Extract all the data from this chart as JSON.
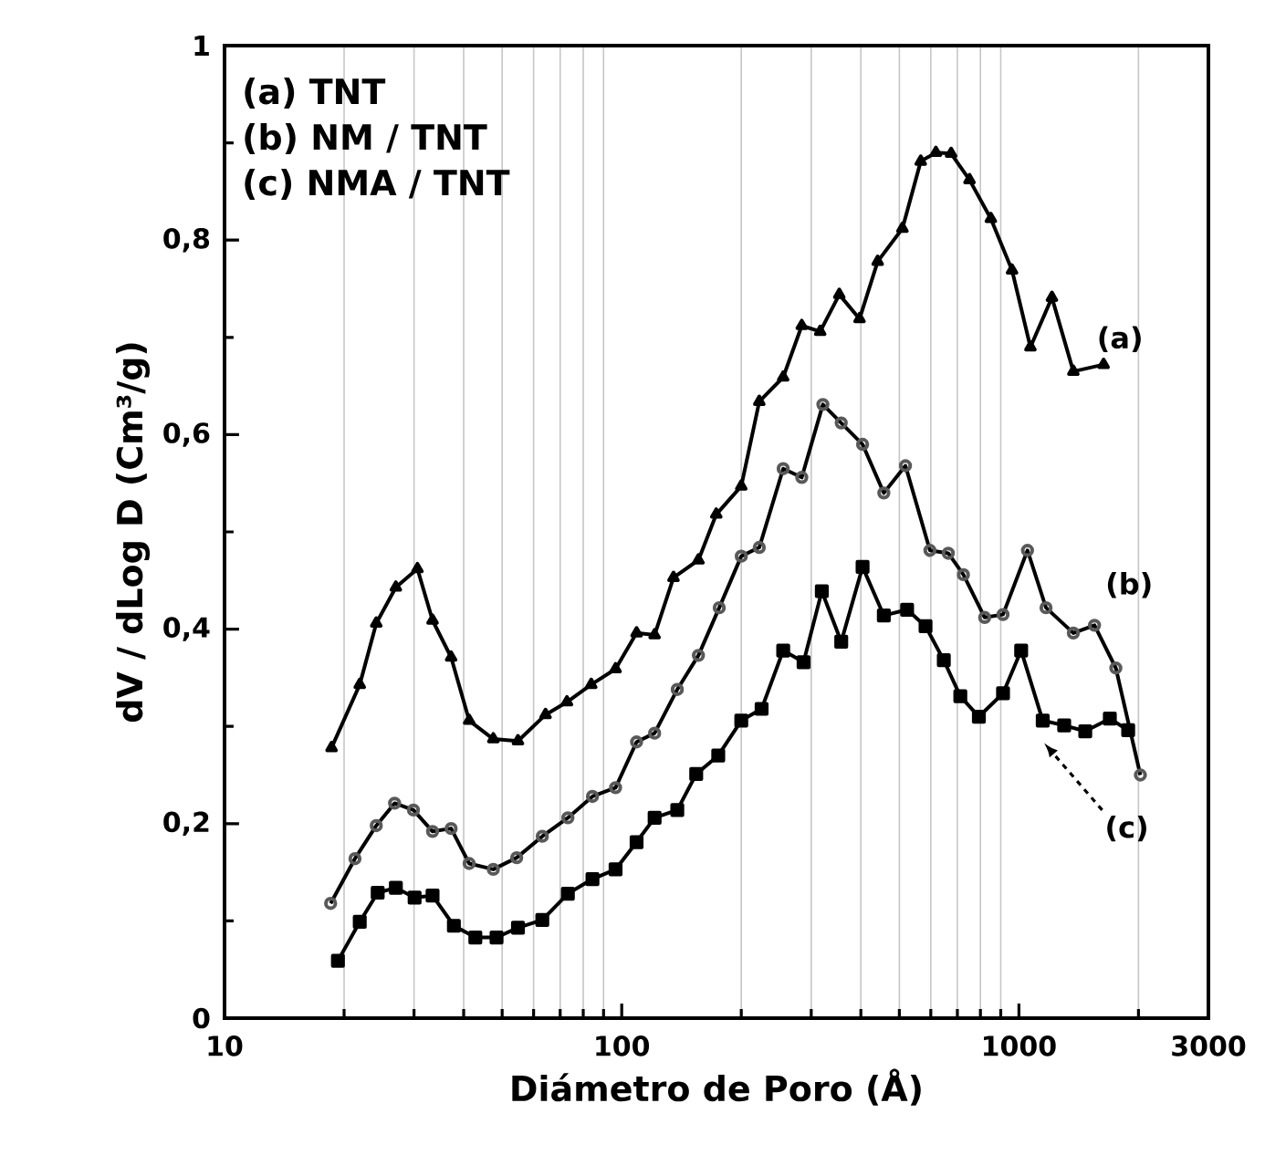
{
  "chart_data": {
    "type": "line",
    "xlabel": "Diámetro de Poro  (Å)",
    "ylabel": "dV / dLog D (Cm³/g)",
    "log": "x",
    "grid": "x",
    "xlim": [
      10,
      3000
    ],
    "xticks": [
      10,
      {
        "value": 20,
        "label": null
      },
      {
        "value": 30,
        "label": null
      },
      {
        "value": 40,
        "label": null
      },
      {
        "value": 50,
        "label": null
      },
      {
        "value": 60,
        "label": null
      },
      {
        "value": 70,
        "label": null
      },
      {
        "value": 80,
        "label": null
      },
      {
        "value": 90,
        "label": null
      },
      100,
      {
        "value": 200,
        "label": null
      },
      {
        "value": 300,
        "label": null
      },
      {
        "value": 400,
        "label": null
      },
      {
        "value": 500,
        "label": null
      },
      {
        "value": 600,
        "label": null
      },
      {
        "value": 700,
        "label": null
      },
      {
        "value": 800,
        "label": null
      },
      {
        "value": 900,
        "label": null
      },
      1000,
      {
        "value": 2000,
        "label": null
      },
      3000
    ],
    "ylim": [
      0,
      1
    ],
    "yticks": [
      0,
      {
        "value": 0.1,
        "label": null
      },
      {
        "value": 0.2,
        "label": "0,2"
      },
      {
        "value": 0.3,
        "label": null
      },
      {
        "value": 0.4,
        "label": "0,4"
      },
      {
        "value": 0.5,
        "label": null
      },
      {
        "value": 0.6,
        "label": "0,6"
      },
      {
        "value": 0.7,
        "label": null
      },
      {
        "value": 0.8,
        "label": "0,8"
      },
      {
        "value": 0.9,
        "label": null
      },
      1
    ],
    "series": [
      {
        "color": "#000000",
        "marker": "triangle",
        "line_style": "solid",
        "x": [
          18.6,
          21.9,
          24.1,
          27.0,
          30.6,
          33.4,
          37.2,
          41.3,
          47.5,
          54.8,
          64.3,
          72.8,
          83.8,
          96.5,
          109,
          121,
          135,
          156,
          173,
          200,
          222,
          255,
          284,
          316,
          353,
          397,
          441,
          509,
          566,
          618,
          675,
          751,
          850,
          961,
          1069,
          1211,
          1371,
          1634
        ],
        "values": [
          0.278,
          0.343,
          0.406,
          0.443,
          0.462,
          0.409,
          0.371,
          0.306,
          0.287,
          0.285,
          0.312,
          0.325,
          0.343,
          0.359,
          0.396,
          0.394,
          0.453,
          0.471,
          0.518,
          0.547,
          0.634,
          0.659,
          0.712,
          0.706,
          0.744,
          0.719,
          0.778,
          0.812,
          0.881,
          0.89,
          0.889,
          0.862,
          0.822,
          0.769,
          0.69,
          0.741,
          0.665,
          0.672
        ]
      },
      {
        "color": "#000000",
        "marker": "circle",
        "line_style": "solid",
        "x": [
          18.5,
          21.3,
          24.1,
          26.8,
          29.9,
          33.4,
          37.2,
          41.3,
          47.5,
          54.4,
          63.1,
          73.2,
          84.4,
          96.5,
          109,
          121,
          138,
          156,
          176,
          200,
          222,
          255,
          284,
          321,
          357,
          404,
          457,
          518,
          597,
          664,
          725,
          820,
          912,
          1051,
          1170,
          1371,
          1550,
          1754,
          2022
        ],
        "values": [
          0.118,
          0.164,
          0.198,
          0.221,
          0.214,
          0.192,
          0.195,
          0.159,
          0.153,
          0.165,
          0.187,
          0.206,
          0.228,
          0.237,
          0.284,
          0.293,
          0.338,
          0.373,
          0.422,
          0.475,
          0.484,
          0.565,
          0.556,
          0.631,
          0.612,
          0.59,
          0.54,
          0.568,
          0.481,
          0.478,
          0.456,
          0.412,
          0.415,
          0.481,
          0.422,
          0.396,
          0.404,
          0.36,
          0.25
        ]
      },
      {
        "color": "#000000",
        "marker": "square",
        "line_style": "solid",
        "x": [
          19.3,
          21.9,
          24.3,
          27.0,
          30.1,
          33.4,
          37.8,
          42.8,
          48.4,
          54.8,
          63.1,
          73.2,
          84.4,
          96.5,
          109,
          121,
          138,
          154,
          175,
          200,
          225,
          255,
          287,
          319,
          357,
          404,
          457,
          523,
          582,
          647,
          712,
          793,
          912,
          1013,
          1148,
          1300,
          1469,
          1694,
          1884
        ],
        "values": [
          0.059,
          0.099,
          0.129,
          0.134,
          0.124,
          0.126,
          0.095,
          0.083,
          0.083,
          0.093,
          0.101,
          0.128,
          0.143,
          0.153,
          0.181,
          0.206,
          0.214,
          0.251,
          0.27,
          0.306,
          0.318,
          0.378,
          0.366,
          0.439,
          0.387,
          0.464,
          0.414,
          0.42,
          0.403,
          0.368,
          0.331,
          0.31,
          0.334,
          0.378,
          0.306,
          0.301,
          0.295,
          0.308,
          0.296
        ]
      }
    ],
    "annotations": [
      "(a) TNT",
      "(b) NM / TNT",
      "(c) NMA / TNT",
      {
        "text": "(a)",
        "x": 1634,
        "y": 0.672
      },
      {
        "text": "(b)",
        "x": 1550,
        "y": 0.404
      },
      "(c)"
    ]
  }
}
